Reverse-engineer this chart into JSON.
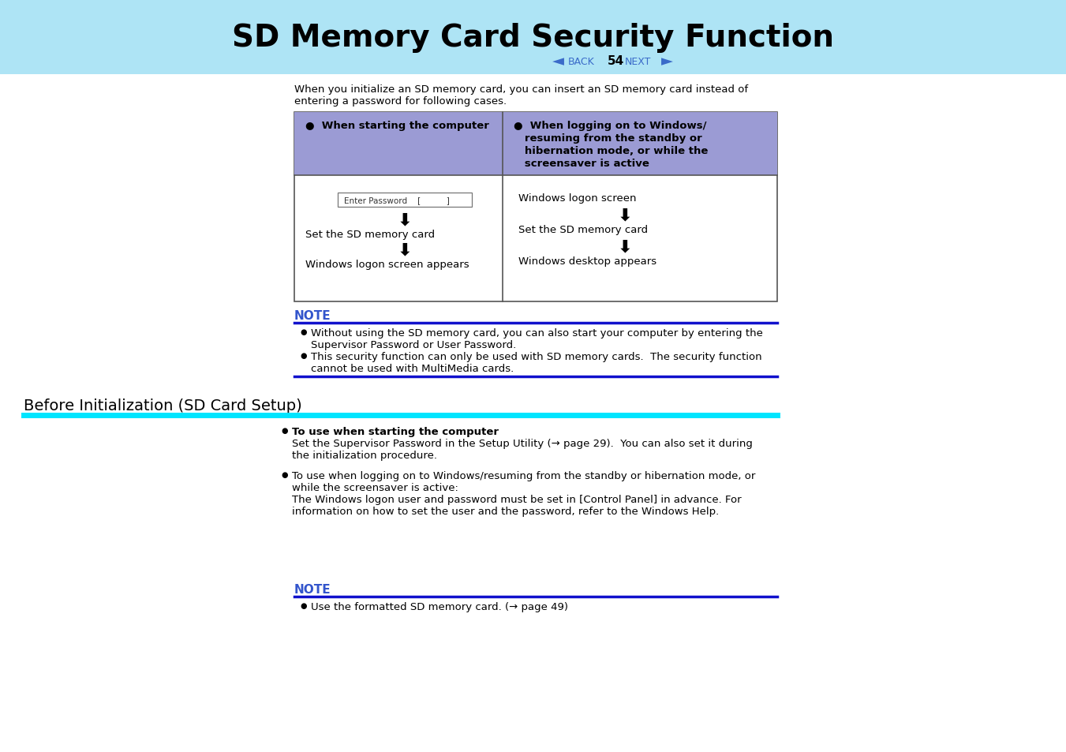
{
  "bg_color": "#ffffff",
  "header_bg": "#aee4f5",
  "header_title": "SD Memory Card Security Function",
  "header_title_color": "#000000",
  "nav_color": "#3a6bc9",
  "nav_back": "BACK",
  "nav_page": "54",
  "nav_next": "NEXT",
  "intro_text1": "When you initialize an SD memory card, you can insert an SD memory card instead of",
  "intro_text2": "entering a password for following cases.",
  "table_header_bg": "#9b9bd4",
  "table_border": "#555555",
  "col1_header": "●  When starting the computer",
  "col2_header_lines": [
    "●  When logging on to Windows/",
    "   resuming from the standby or",
    "   hibernation mode, or while the",
    "   screensaver is active"
  ],
  "pw_box_text": "Enter Password    [        ]",
  "col1_lines": [
    "Set the SD memory card",
    "Windows logon screen appears"
  ],
  "col2_line0": "Windows logon screen",
  "col2_lines": [
    "Set the SD memory card",
    "Windows desktop appears"
  ],
  "note_color": "#3355cc",
  "note_line_color": "#1111cc",
  "note1_b1": "Without using the SD memory card, you can also start your computer by entering the",
  "note1_b1b": "Supervisor Password or User Password.",
  "note1_b2": "This security function can only be used with SD memory cards.  The security function",
  "note1_b2b": "cannot be used with MultiMedia cards.",
  "section_title": "Before Initialization (SD Card Setup)",
  "section_line_color": "#00e5ff",
  "sb1_bold": "To use when starting the computer",
  "sb1_text1": "Set the Supervisor Password in the Setup Utility (→ page 29).  You can also set it during",
  "sb1_text2": "the initialization procedure.",
  "sb1_page29_color": "#00aa00",
  "sb2_text": [
    "To use when logging on to Windows/resuming from the standby or hibernation mode, or",
    "while the screensaver is active:",
    "The Windows logon user and password must be set in [Control Panel] in advance. For",
    "information on how to set the user and the password, refer to the Windows Help."
  ],
  "note2_b1_pre": "Use the formatted SD memory card. (→ page 49)",
  "page49_color": "#00aa00",
  "black": "#000000"
}
